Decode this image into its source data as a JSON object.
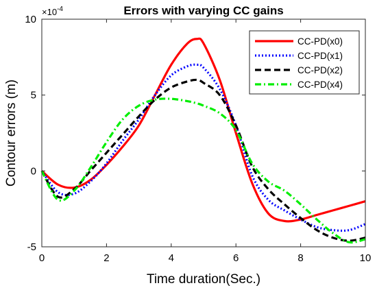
{
  "chart_data": {
    "type": "line",
    "title": "Errors with varying CC gains",
    "xlabel": "Time duration(Sec.)",
    "ylabel": "Contour errors (m)",
    "y_exponent_label": "×10",
    "y_exponent_power": "-4",
    "xlim": [
      0,
      10
    ],
    "ylim": [
      -5,
      10
    ],
    "x_ticks": [
      0,
      2,
      4,
      6,
      8,
      10
    ],
    "y_ticks": [
      -5,
      0,
      5,
      10
    ],
    "grid": false,
    "legend_position": "top-right",
    "x": [
      0,
      0.5,
      1,
      1.5,
      2,
      2.5,
      3,
      3.5,
      4,
      4.5,
      4.8,
      5,
      5.5,
      6,
      6.5,
      7,
      7.5,
      8,
      8.5,
      9,
      9.5,
      10
    ],
    "series": [
      {
        "name": "CC-PD(x0)",
        "color": "#ff0000",
        "dash": "solid",
        "values": [
          0,
          -0.9,
          -1.1,
          -0.6,
          0.4,
          1.6,
          3.0,
          5.0,
          7.0,
          8.4,
          8.7,
          8.4,
          6.0,
          2.5,
          -0.8,
          -2.8,
          -3.3,
          -3.2,
          -2.9,
          -2.6,
          -2.3,
          -2.0
        ]
      },
      {
        "name": "CC-PD(x1)",
        "color": "#0000ff",
        "dash": "dot",
        "values": [
          0,
          -1.4,
          -1.5,
          -0.7,
          0.5,
          2.0,
          3.4,
          5.0,
          6.3,
          6.9,
          7.0,
          6.8,
          5.4,
          3.0,
          -0.3,
          -1.9,
          -2.6,
          -3.2,
          -3.7,
          -3.9,
          -3.9,
          -3.5
        ]
      },
      {
        "name": "CC-PD(x2)",
        "color": "#000000",
        "dash": "dash",
        "values": [
          0,
          -1.7,
          -1.2,
          0.0,
          1.2,
          2.4,
          3.6,
          4.7,
          5.5,
          5.9,
          6.0,
          5.8,
          5.0,
          3.0,
          0.3,
          -1.2,
          -2.2,
          -3.1,
          -3.9,
          -4.4,
          -4.6,
          -4.4
        ]
      },
      {
        "name": "CC-PD(x4)",
        "color": "#00ee00",
        "dash": "dashdot",
        "values": [
          0,
          -1.9,
          -1.3,
          0.2,
          1.9,
          3.4,
          4.3,
          4.7,
          4.75,
          4.6,
          4.45,
          4.3,
          3.8,
          2.7,
          0.5,
          -0.7,
          -1.3,
          -2.2,
          -3.2,
          -4.1,
          -4.7,
          -4.5
        ]
      }
    ]
  }
}
